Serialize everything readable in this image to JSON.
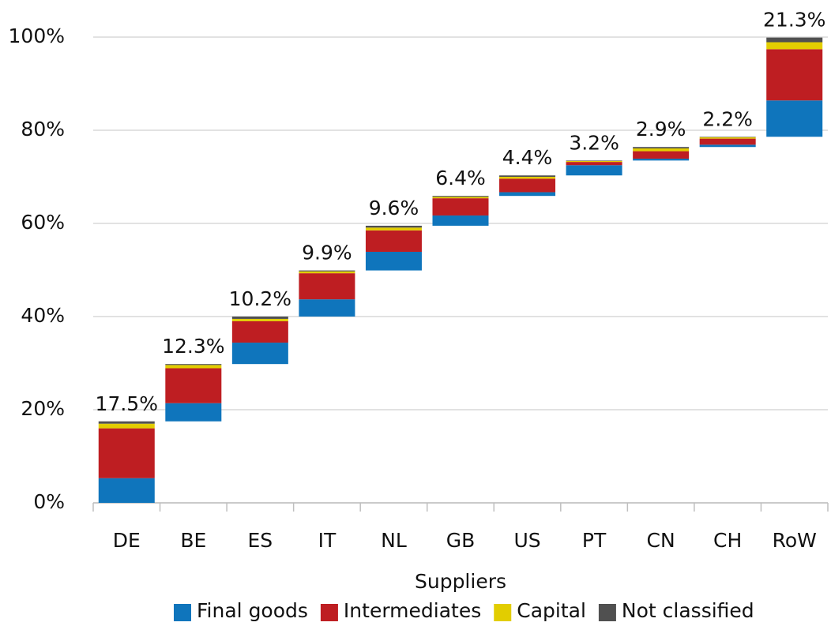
{
  "chart_data": {
    "type": "waterfall_stacked",
    "x_label": "Suppliers",
    "categories": [
      "DE",
      "BE",
      "ES",
      "IT",
      "NL",
      "GB",
      "US",
      "PT",
      "CN",
      "CH",
      "RoW"
    ],
    "series": [
      {
        "name": "Final goods",
        "color": "#0f75bc",
        "values": [
          5.3,
          3.9,
          4.6,
          3.7,
          4.0,
          2.2,
          0.8,
          2.2,
          0.4,
          0.5,
          7.8
        ]
      },
      {
        "name": "Intermediates",
        "color": "#be1e22",
        "values": [
          10.7,
          7.5,
          4.6,
          5.6,
          4.6,
          3.7,
          2.9,
          0.7,
          1.6,
          1.3,
          11.0
        ]
      },
      {
        "name": "Capital",
        "color": "#e2cd00",
        "values": [
          1.0,
          0.7,
          0.5,
          0.4,
          0.6,
          0.3,
          0.4,
          0.2,
          0.6,
          0.3,
          1.5
        ]
      },
      {
        "name": "Not classified",
        "color": "#505050",
        "values": [
          0.5,
          0.2,
          0.5,
          0.2,
          0.4,
          0.2,
          0.3,
          0.1,
          0.3,
          0.1,
          1.0
        ]
      }
    ],
    "totals": [
      17.5,
      12.3,
      10.2,
      9.9,
      9.6,
      6.4,
      4.4,
      3.2,
      2.9,
      2.2,
      21.3
    ],
    "total_labels": [
      "17.5%",
      "12.3%",
      "10.2%",
      "9.9%",
      "9.6%",
      "6.4%",
      "4.4%",
      "3.2%",
      "2.9%",
      "2.2%",
      "21.3%"
    ],
    "ylim": [
      0,
      100
    ],
    "yticks": [
      {
        "value": 0,
        "label": "0%"
      },
      {
        "value": 20,
        "label": "20%"
      },
      {
        "value": 40,
        "label": "40%"
      },
      {
        "value": 60,
        "label": "60%"
      },
      {
        "value": 80,
        "label": "80%"
      },
      {
        "value": 100,
        "label": "100%"
      }
    ],
    "grid": true
  }
}
